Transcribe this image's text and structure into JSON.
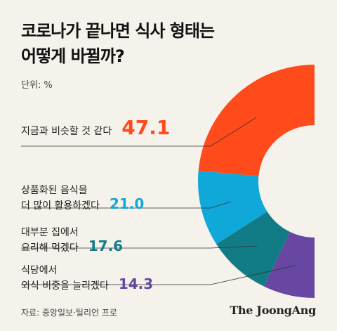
{
  "title_line1": "코로나가 끝나면 식사 형태는",
  "title_line2": "어떻게 바뀔까?",
  "unit": "단위: %",
  "source": "자료: 중앙일보·틸리언 프로",
  "brand": "The JoongAng",
  "chart_data": {
    "type": "pie",
    "title": "코로나가 끝나면 식사 형태는 어떻게 바뀔까?",
    "unit": "%",
    "slices": [
      {
        "label_lines": [
          "지금과 비슷할 것 같다"
        ],
        "value": 47.1,
        "value_text": "47.1",
        "color": "#ff4a1c"
      },
      {
        "label_lines": [
          "상품화된 음식을",
          "더 많이 활용하겠다"
        ],
        "value": 21.0,
        "value_text": "21.0",
        "color": "#10a8d8"
      },
      {
        "label_lines": [
          "대부분 집에서",
          "요리해 먹겠다"
        ],
        "value": 17.6,
        "value_text": "17.6",
        "color": "#127c86"
      },
      {
        "label_lines": [
          "식당에서",
          "외식 비중을 늘리겠다"
        ],
        "value": 14.3,
        "value_text": "14.3",
        "color": "#6847a3"
      }
    ]
  }
}
